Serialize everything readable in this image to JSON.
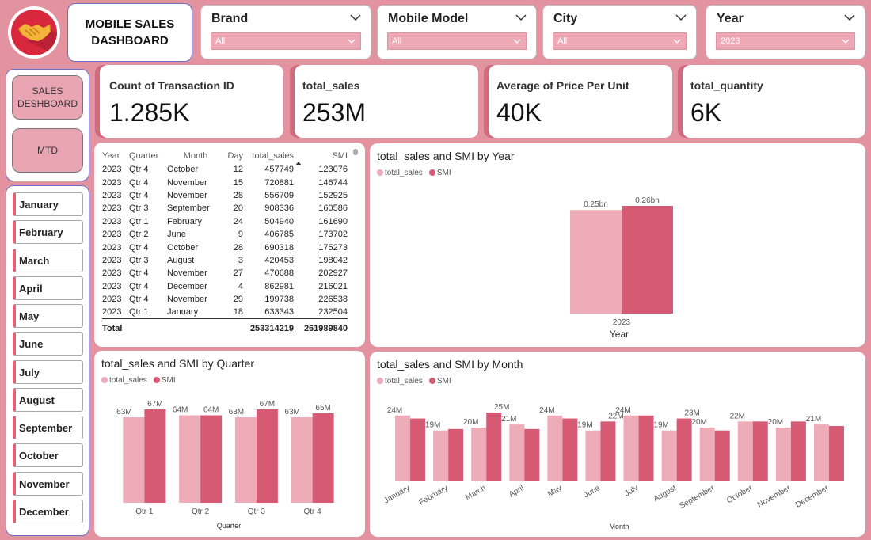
{
  "header": {
    "title": "MOBILE SALES DASHBOARD"
  },
  "slicers": [
    {
      "label": "Brand",
      "value": "All"
    },
    {
      "label": "Mobile Model",
      "value": "All"
    },
    {
      "label": "City",
      "value": "All"
    },
    {
      "label": "Year",
      "value": "2023"
    }
  ],
  "nav": {
    "sales_dashboard": "SALES DESHBOARD",
    "mtd": "MTD"
  },
  "months": [
    "January",
    "February",
    "March",
    "April",
    "May",
    "June",
    "July",
    "August",
    "September",
    "October",
    "November",
    "December"
  ],
  "kpis": [
    {
      "title": "Count of Transaction ID",
      "value": "1.285K"
    },
    {
      "title": "total_sales",
      "value": "253M"
    },
    {
      "title": "Average of Price Per Unit",
      "value": "40K"
    },
    {
      "title": "total_quantity",
      "value": "6K"
    }
  ],
  "colors": {
    "total_sales": "#eeabb8",
    "smi": "#d65a73"
  },
  "table": {
    "columns": [
      "Year",
      "Quarter",
      "Month",
      "Day",
      "total_sales",
      "SMI"
    ],
    "rows": [
      [
        "2023",
        "Qtr 4",
        "October",
        "12",
        "457749",
        "123076"
      ],
      [
        "2023",
        "Qtr 4",
        "November",
        "15",
        "720881",
        "146744"
      ],
      [
        "2023",
        "Qtr 4",
        "November",
        "28",
        "556709",
        "152925"
      ],
      [
        "2023",
        "Qtr 3",
        "September",
        "20",
        "908336",
        "160586"
      ],
      [
        "2023",
        "Qtr 1",
        "February",
        "24",
        "504940",
        "161690"
      ],
      [
        "2023",
        "Qtr 2",
        "June",
        "9",
        "406785",
        "173702"
      ],
      [
        "2023",
        "Qtr 4",
        "October",
        "28",
        "690318",
        "175273"
      ],
      [
        "2023",
        "Qtr 3",
        "August",
        "3",
        "420453",
        "198042"
      ],
      [
        "2023",
        "Qtr 4",
        "November",
        "27",
        "470688",
        "202927"
      ],
      [
        "2023",
        "Qtr 4",
        "December",
        "4",
        "862981",
        "216021"
      ],
      [
        "2023",
        "Qtr 4",
        "November",
        "29",
        "199738",
        "226538"
      ],
      [
        "2023",
        "Qtr 1",
        "January",
        "18",
        "633343",
        "232504"
      ]
    ],
    "total_label": "Total",
    "total_sales": "253314219",
    "total_smi": "261989840"
  },
  "chart_data": [
    {
      "type": "bar",
      "title": "total_sales and SMI by Year",
      "legend": [
        "total_sales",
        "SMI"
      ],
      "categories": [
        "2023"
      ],
      "series": [
        {
          "name": "total_sales",
          "values": [
            0.25
          ],
          "labels": [
            "0.25bn"
          ]
        },
        {
          "name": "SMI",
          "values": [
            0.26
          ],
          "labels": [
            "0.26bn"
          ]
        }
      ],
      "xlabel": "Year",
      "ylabel": "",
      "ylim": [
        0,
        0.26
      ]
    },
    {
      "type": "bar",
      "title": "total_sales and SMI by Quarter",
      "legend": [
        "total_sales",
        "SMI"
      ],
      "categories": [
        "Qtr 1",
        "Qtr 2",
        "Qtr 3",
        "Qtr 4"
      ],
      "series": [
        {
          "name": "total_sales",
          "values": [
            63,
            64,
            63,
            63
          ],
          "labels": [
            "63M",
            "64M",
            "63M",
            "63M"
          ]
        },
        {
          "name": "SMI",
          "values": [
            67,
            64,
            67,
            65
          ],
          "labels": [
            "67M",
            "64M",
            "67M",
            "65M"
          ]
        }
      ],
      "xlabel": "Quarter",
      "ylabel": "",
      "ylim": [
        0,
        67
      ]
    },
    {
      "type": "bar",
      "title": "total_sales and SMI by Month",
      "legend": [
        "total_sales",
        "SMI"
      ],
      "categories": [
        "January",
        "February",
        "March",
        "April",
        "May",
        "June",
        "July",
        "August",
        "September",
        "October",
        "November",
        "December"
      ],
      "series": [
        {
          "name": "total_sales",
          "values": [
            24,
            19,
            20,
            21,
            24,
            19,
            24,
            19,
            20,
            22,
            20,
            21
          ],
          "labels": [
            "24M",
            "19M",
            "20M",
            "21M",
            "24M",
            "19M",
            "24M",
            "19M",
            "20M",
            "22M",
            "20M",
            "21M"
          ]
        },
        {
          "name": "SMI",
          "values": [
            23,
            19.5,
            25,
            19.5,
            23,
            22,
            24,
            23,
            19,
            22,
            22,
            20.5
          ],
          "labels": [
            "",
            "",
            "25M",
            "",
            "",
            "22M",
            "",
            "23M",
            "",
            "",
            "",
            ""
          ]
        }
      ],
      "xlabel": "Month",
      "ylabel": "",
      "ylim": [
        0,
        25
      ]
    }
  ]
}
